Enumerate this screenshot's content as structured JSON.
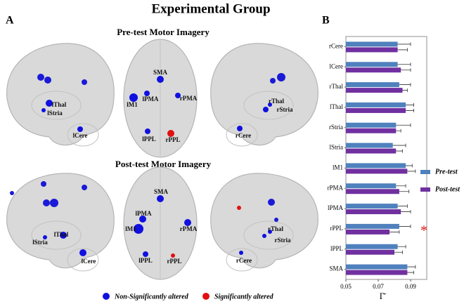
{
  "title": "Experimental Group",
  "panel_a": {
    "label": "A",
    "pre_title": "Pre-test Motor Imagery",
    "post_title": "Post-test Motor Imagery",
    "pre_nodes": [
      {
        "label": "lThal",
        "significant": false
      },
      {
        "label": "lStria",
        "significant": false
      },
      {
        "label": "lCere",
        "significant": false
      },
      {
        "label": "SMA",
        "significant": false
      },
      {
        "label": "lM1",
        "significant": false
      },
      {
        "label": "lPMA",
        "significant": false
      },
      {
        "label": "rPMA",
        "significant": false
      },
      {
        "label": "lPPL",
        "significant": false
      },
      {
        "label": "rPPL",
        "significant": true
      },
      {
        "label": "rThal",
        "significant": false
      },
      {
        "label": "rStria",
        "significant": false
      },
      {
        "label": "rCere",
        "significant": false
      }
    ],
    "post_nodes": [
      {
        "label": "lThal",
        "significant": false
      },
      {
        "label": "lStria",
        "significant": false
      },
      {
        "label": "lCere",
        "significant": false
      },
      {
        "label": "SMA",
        "significant": false
      },
      {
        "label": "lPMA",
        "significant": false
      },
      {
        "label": "lM1",
        "significant": false
      },
      {
        "label": "rPMA",
        "significant": false
      },
      {
        "label": "lPPL",
        "significant": false
      },
      {
        "label": "rPPL",
        "significant": true
      },
      {
        "label": "rThal",
        "significant": false
      },
      {
        "label": "rStria",
        "significant": false
      },
      {
        "label": "rCere",
        "significant": false
      }
    ],
    "legend": [
      {
        "text": "Non-Significantly altered",
        "color": "#1010e0"
      },
      {
        "text": "Significantly altered",
        "color": "#e01010"
      }
    ]
  },
  "chart_data": {
    "type": "bar",
    "orientation": "horizontal",
    "panel_label": "B",
    "categories": [
      "rCere",
      "lCere",
      "rThal",
      "lThal",
      "rStria",
      "lStria",
      "lM1",
      "rPMA",
      "lPMA",
      "rPPL",
      "lPPL",
      "SMA"
    ],
    "series": [
      {
        "name": "Pre-test",
        "color": "#4f81bd",
        "values": [
          0.082,
          0.082,
          0.083,
          0.087,
          0.081,
          0.079,
          0.087,
          0.081,
          0.082,
          0.083,
          0.082,
          0.088
        ],
        "errors": [
          0.008,
          0.008,
          0.007,
          0.005,
          0.009,
          0.008,
          0.004,
          0.006,
          0.006,
          0.007,
          0.005,
          0.005
        ]
      },
      {
        "name": "Post-test",
        "color": "#7030a0",
        "values": [
          0.082,
          0.084,
          0.085,
          0.087,
          0.081,
          0.081,
          0.088,
          0.083,
          0.084,
          0.077,
          0.08,
          0.088
        ],
        "errors": [
          0.006,
          0.006,
          0.003,
          0.005,
          0.003,
          0.004,
          0.005,
          0.006,
          0.006,
          0.006,
          0.005,
          0.004
        ]
      }
    ],
    "xlim": [
      0.05,
      0.1
    ],
    "xticks": [
      0.05,
      0.07,
      0.09
    ],
    "xlabel": "Γ̄",
    "annotations": [
      {
        "text": "*",
        "category": "rPPL",
        "color": "#e01010"
      }
    ]
  }
}
